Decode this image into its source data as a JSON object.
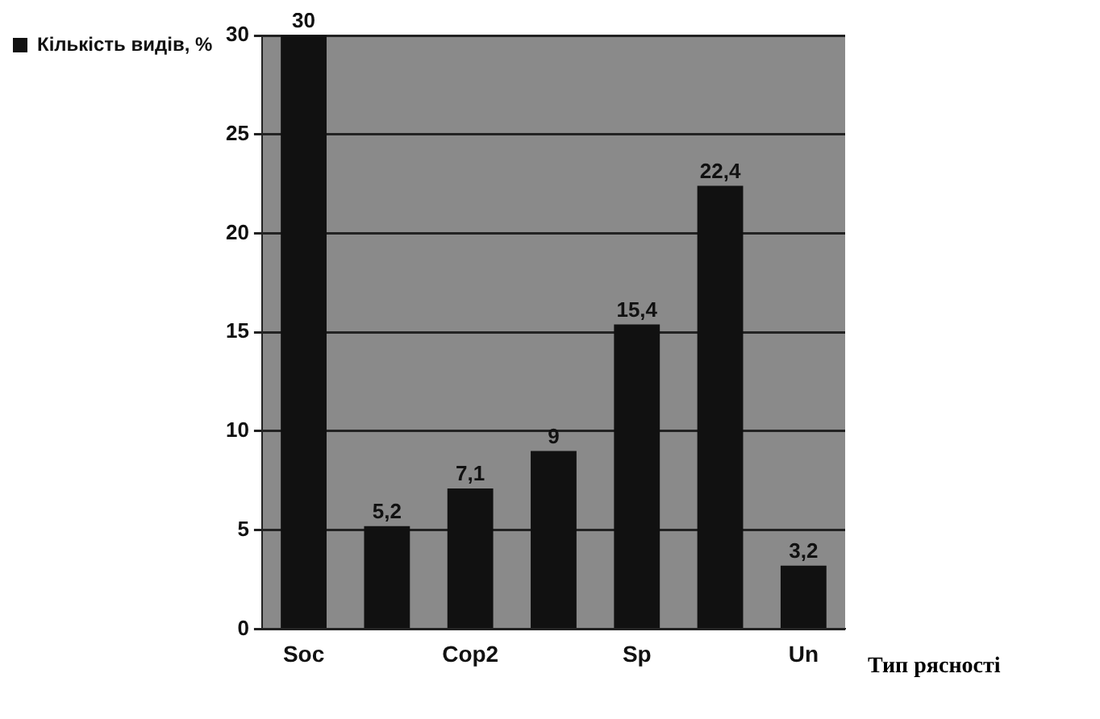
{
  "chart_data": {
    "type": "bar",
    "xlabel": "Тип рясності",
    "categories": [
      "Soc",
      null,
      "Cop2",
      null,
      "Sp",
      null,
      "Un"
    ],
    "series": [
      {
        "name": "Кількість видів, %",
        "color": "#111111",
        "values": [
          30,
          5.2,
          7.1,
          9,
          15.4,
          22.4,
          3.2
        ],
        "value_labels": [
          "30",
          "5,2",
          "7,1",
          "9",
          "15,4",
          "22,4",
          "3,2"
        ]
      }
    ],
    "ylim": [
      0,
      30
    ],
    "yticks": [
      0,
      5,
      10,
      15,
      20,
      25,
      30
    ],
    "grid": "y",
    "legend": "top left"
  }
}
